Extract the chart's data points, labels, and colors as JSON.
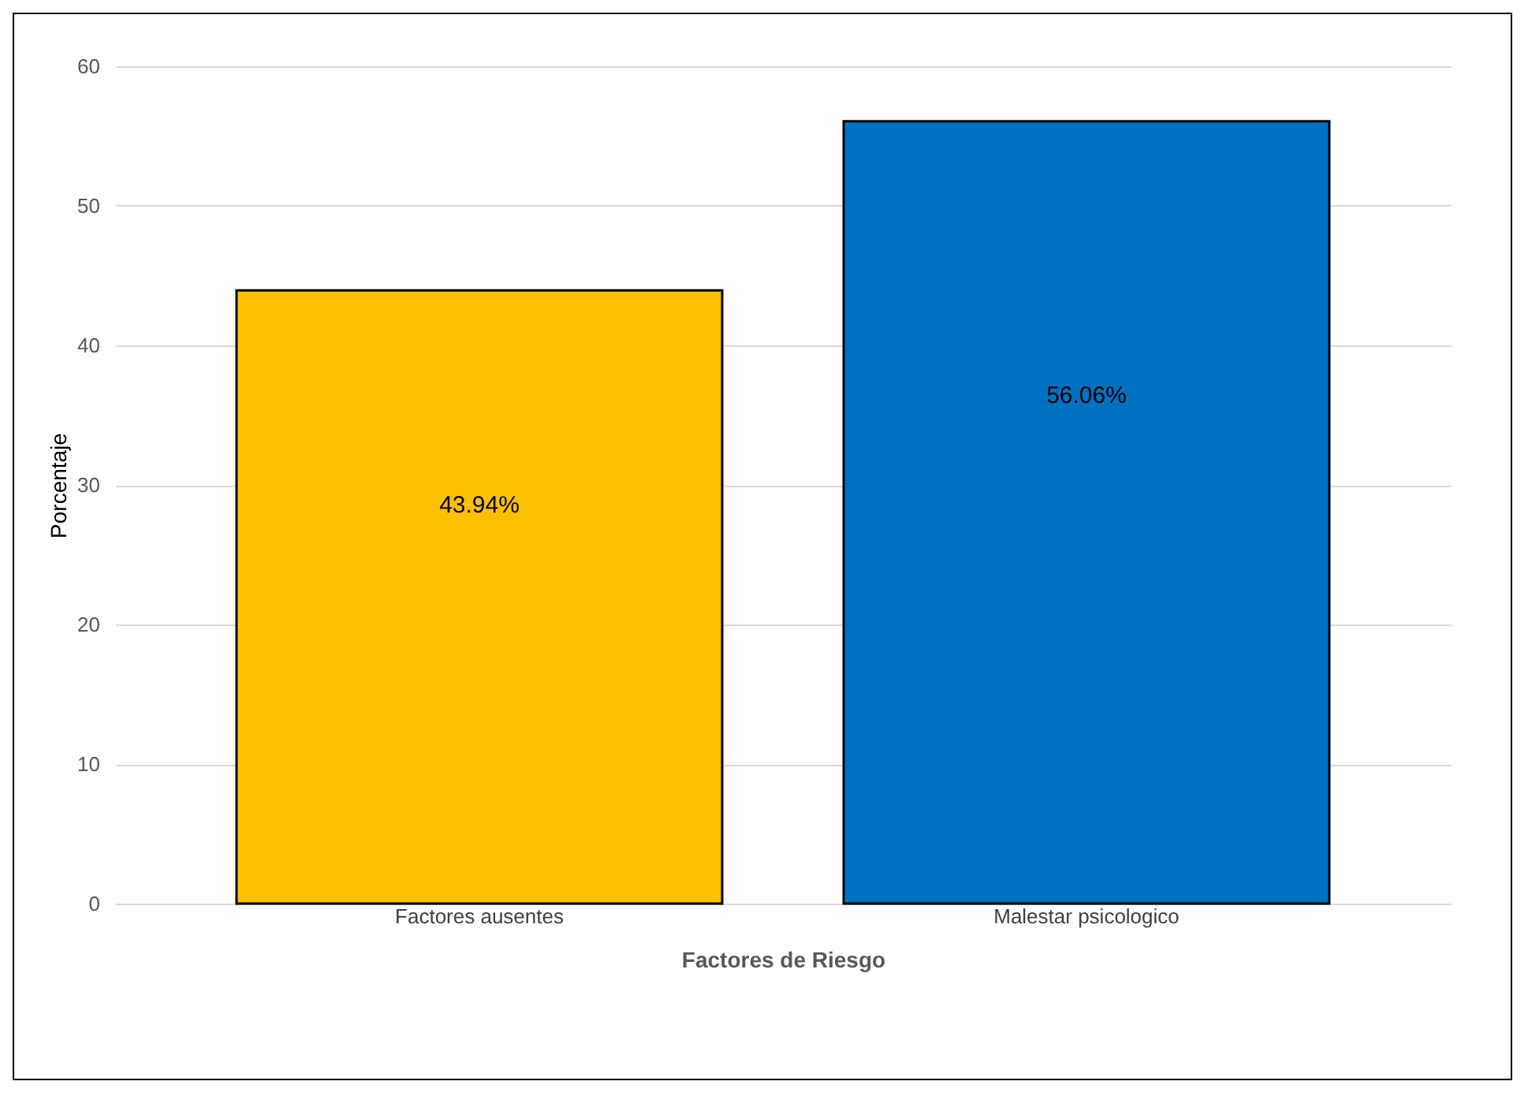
{
  "chart_data": {
    "type": "bar",
    "xlabel": "Factores de Riesgo",
    "ylabel": "Porcentaje",
    "categories": [
      "Factores ausentes",
      "Malestar psicologico"
    ],
    "values": [
      43.94,
      56.06
    ],
    "colors": [
      "#ffc000",
      "#0070c0"
    ],
    "value_labels": [
      "43.94%",
      "56.06%"
    ],
    "ylim": [
      0,
      60
    ],
    "yticks": [
      0,
      10,
      20,
      30,
      40,
      50,
      60
    ],
    "grid": "y"
  }
}
